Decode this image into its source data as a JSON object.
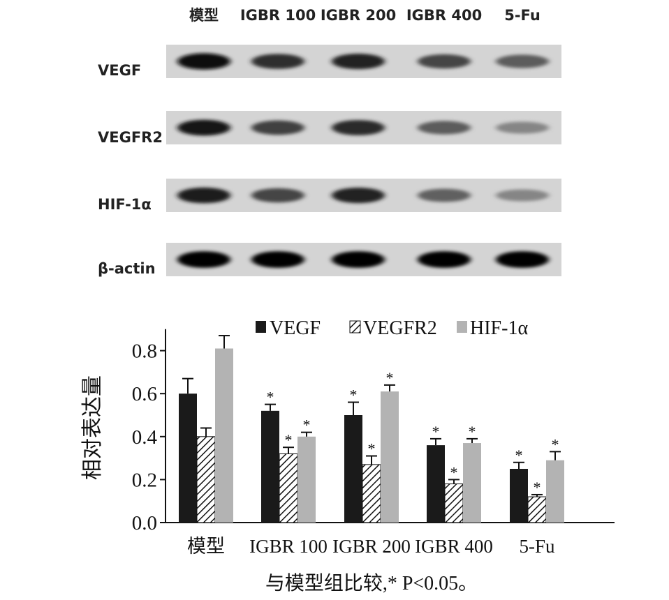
{
  "blot": {
    "lanes": [
      "模型",
      "IGBR 100",
      "IGBR 200",
      "IGBR 400",
      "5-Fu"
    ],
    "rows": [
      {
        "label": "VEGF",
        "intensity": [
          0.95,
          0.8,
          0.85,
          0.7,
          0.6
        ]
      },
      {
        "label": "VEGFR2",
        "intensity": [
          0.9,
          0.72,
          0.82,
          0.6,
          0.42
        ]
      },
      {
        "label": "HIF-1α",
        "intensity": [
          0.88,
          0.7,
          0.85,
          0.58,
          0.42
        ]
      },
      {
        "label": "β-actin",
        "intensity": [
          0.98,
          0.98,
          0.98,
          0.98,
          0.98
        ]
      }
    ]
  },
  "chart_data": {
    "type": "bar",
    "categories": [
      "模型",
      "IGBR 100",
      "IGBR 200",
      "IGBR 400",
      "5-Fu"
    ],
    "series": [
      {
        "name": "VEGF",
        "pattern": "solid-dark",
        "color": "#1a1a1a",
        "values": [
          0.6,
          0.52,
          0.5,
          0.36,
          0.25
        ],
        "errors": [
          0.07,
          0.03,
          0.06,
          0.03,
          0.03
        ],
        "significance": [
          "",
          "*",
          "*",
          "*",
          "*"
        ]
      },
      {
        "name": "VEGFR2",
        "pattern": "hatched",
        "color": "#1a1a1a",
        "values": [
          0.4,
          0.32,
          0.27,
          0.18,
          0.12
        ],
        "errors": [
          0.04,
          0.03,
          0.04,
          0.02,
          0.01
        ],
        "significance": [
          "",
          "*",
          "*",
          "*",
          "*"
        ]
      },
      {
        "name": "HIF-1α",
        "pattern": "solid-light",
        "color": "#b3b3b3",
        "values": [
          0.81,
          0.4,
          0.61,
          0.37,
          0.29
        ],
        "errors": [
          0.06,
          0.02,
          0.03,
          0.02,
          0.04
        ],
        "significance": [
          "",
          "*",
          "*",
          "*",
          "*"
        ]
      }
    ],
    "ylabel": "相对表达量",
    "ylim": [
      0,
      0.9
    ],
    "yticks": [
      "0.0",
      "0.2",
      "0.4",
      "0.6",
      "0.8"
    ],
    "legend": {
      "position": "top",
      "labels": [
        "VEGF",
        "VEGFR2",
        "HIF-1α"
      ]
    },
    "grid": false,
    "caption": "与模型组比较,* P<0.05。"
  }
}
